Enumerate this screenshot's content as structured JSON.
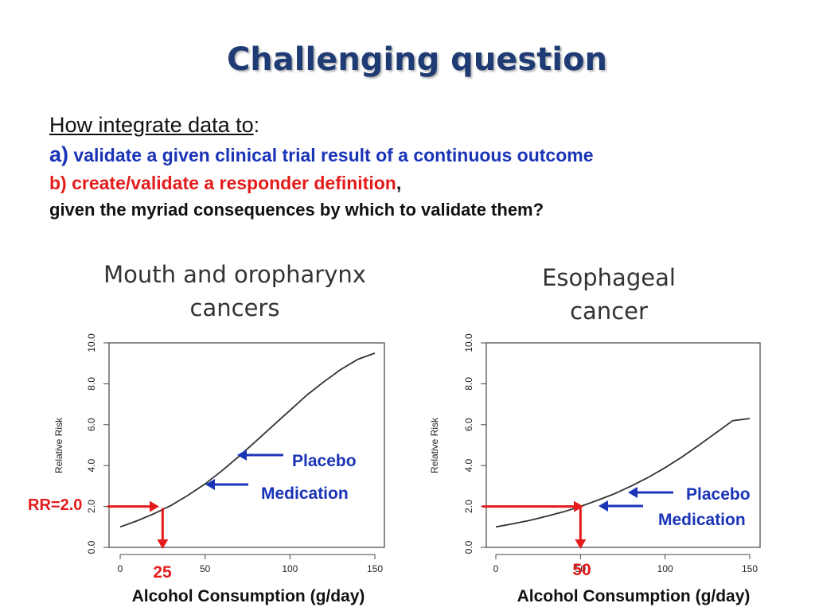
{
  "slide": {
    "title": "Challenging question",
    "intro": "How integrate data to",
    "intro_suffix": ":",
    "item_a_letter": "a)",
    "item_a_text": "validate a given clinical trial result of a continuous outcome",
    "item_b_text": "b) create/validate a responder definition",
    "item_b_suffix": ",",
    "closing": "given the myriad consequences by which to validate them?"
  },
  "colors": {
    "title": "#1f3b73",
    "blue": "#1a34b8",
    "red": "#e31b1b",
    "curve": "#333333"
  },
  "chart_data": [
    {
      "type": "line",
      "title": "Mouth and oropharynx cancers",
      "xlabel": "Alcohol Consumption (g/day)",
      "ylabel": "Relative Risk",
      "xlim": [
        0,
        150
      ],
      "ylim": [
        0,
        10
      ],
      "xticks": [
        "0",
        "50",
        "100",
        "150"
      ],
      "yticks": [
        "0.0",
        "2.0",
        "4.0",
        "6.0",
        "8.0",
        "10.0"
      ],
      "grid": false,
      "series": [
        {
          "x": [
            0,
            10,
            20,
            30,
            40,
            50,
            60,
            70,
            80,
            90,
            100,
            110,
            120,
            130,
            140,
            150
          ],
          "y": [
            1.0,
            1.3,
            1.65,
            2.05,
            2.55,
            3.1,
            3.75,
            4.45,
            5.2,
            5.95,
            6.7,
            7.45,
            8.1,
            8.7,
            9.2,
            9.5
          ]
        }
      ],
      "annotations": {
        "rr_label": "RR=2.0",
        "rr_value": 2.0,
        "x_marker": "25",
        "x_marker_value": 25,
        "placebo": "Placebo",
        "medication": "Medication"
      }
    },
    {
      "type": "line",
      "title": "Esophageal cancer",
      "xlabel": "Alcohol Consumption (g/day)",
      "ylabel": "Relative Risk",
      "xlim": [
        0,
        150
      ],
      "ylim": [
        0,
        10
      ],
      "xticks": [
        "0",
        "50",
        "100",
        "150"
      ],
      "yticks": [
        "0.0",
        "2.0",
        "4.0",
        "6.0",
        "8.0",
        "10.0"
      ],
      "grid": false,
      "series": [
        {
          "x": [
            0,
            10,
            20,
            30,
            40,
            50,
            60,
            70,
            80,
            90,
            100,
            110,
            120,
            130,
            140,
            150
          ],
          "y": [
            1.0,
            1.15,
            1.32,
            1.52,
            1.74,
            2.0,
            2.3,
            2.62,
            3.0,
            3.42,
            3.9,
            4.42,
            5.0,
            5.6,
            6.2,
            6.3
          ]
        }
      ],
      "annotations": {
        "rr_label": "",
        "rr_value": 2.0,
        "x_marker": "50",
        "x_marker_value": 50,
        "placebo": "Placebo",
        "medication": "Medication"
      }
    }
  ]
}
